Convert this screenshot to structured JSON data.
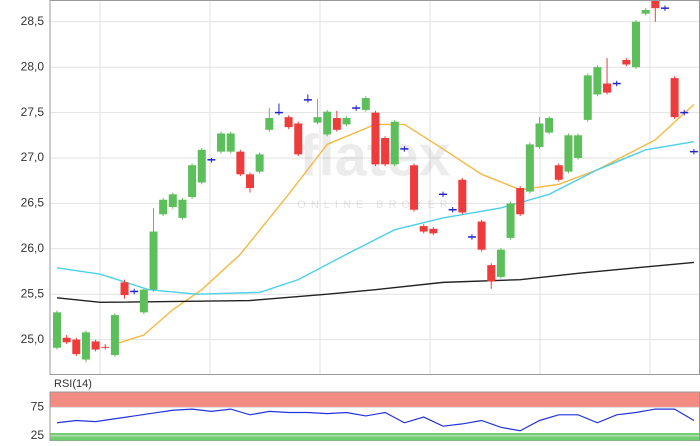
{
  "chart_data": [
    {
      "type": "candlestick",
      "watermark": "flatex",
      "watermark_sub": "ONLINE BROKER",
      "open": [
        24.91,
        25.02,
        25.0,
        24.78,
        24.98,
        24.92,
        24.83,
        25.63,
        25.53,
        25.3,
        25.55,
        26.38,
        26.46,
        26.34,
        26.57,
        26.73,
        26.98,
        27.07,
        27.07,
        27.07,
        26.82,
        26.85,
        27.31,
        27.5,
        27.45,
        27.38,
        27.64,
        27.39,
        27.26,
        27.44,
        27.37,
        27.55,
        27.53,
        27.5,
        27.22,
        26.93,
        27.1,
        26.92,
        26.25,
        26.22,
        26.6,
        26.43,
        26.76,
        26.13,
        26.3,
        25.82,
        25.69,
        26.12,
        26.67,
        26.63,
        27.12,
        27.28,
        26.92,
        26.85,
        27.0,
        27.42,
        27.7,
        27.82,
        27.82,
        28.08,
        28.0,
        28.59,
        28.74,
        28.65,
        27.88,
        27.5,
        27.07
      ],
      "high": [
        25.32,
        25.05,
        25.02,
        25.1,
        25.0,
        24.95,
        25.29,
        25.66,
        25.56,
        25.56,
        26.45,
        26.56,
        26.62,
        26.56,
        26.94,
        27.11,
        27.0,
        27.29,
        27.29,
        27.09,
        26.84,
        27.06,
        27.55,
        27.6,
        27.47,
        27.4,
        27.7,
        27.65,
        27.53,
        27.52,
        27.46,
        27.58,
        27.68,
        27.52,
        27.24,
        27.42,
        27.13,
        26.94,
        26.27,
        26.24,
        26.63,
        26.46,
        26.78,
        26.16,
        26.32,
        25.84,
        26.01,
        26.52,
        26.69,
        27.17,
        27.45,
        27.46,
        26.94,
        27.27,
        27.27,
        27.93,
        28.02,
        28.1,
        27.85,
        28.1,
        28.52,
        28.65,
        28.76,
        28.68,
        27.9,
        27.53,
        27.1
      ],
      "low": [
        24.89,
        24.95,
        24.82,
        24.75,
        24.87,
        24.89,
        24.81,
        25.45,
        25.5,
        25.28,
        25.53,
        26.36,
        26.44,
        26.32,
        26.55,
        26.71,
        26.95,
        27.05,
        27.05,
        26.8,
        26.62,
        26.83,
        27.29,
        27.47,
        27.32,
        27.02,
        27.61,
        27.37,
        27.24,
        27.29,
        27.35,
        27.52,
        27.51,
        26.91,
        26.91,
        26.91,
        27.07,
        26.41,
        26.17,
        26.15,
        26.57,
        26.4,
        26.38,
        26.1,
        25.97,
        25.56,
        25.67,
        26.1,
        26.36,
        26.61,
        27.1,
        27.26,
        26.74,
        26.83,
        26.98,
        27.4,
        27.68,
        27.7,
        27.79,
        28.01,
        27.98,
        28.57,
        28.5,
        28.62,
        27.43,
        27.47,
        27.04
      ],
      "close": [
        25.3,
        24.97,
        24.84,
        25.08,
        24.89,
        24.91,
        25.27,
        25.49,
        25.53,
        25.55,
        26.19,
        26.54,
        26.6,
        26.54,
        26.92,
        27.09,
        26.98,
        27.27,
        27.27,
        26.82,
        26.67,
        27.04,
        27.44,
        27.5,
        27.34,
        27.04,
        27.64,
        27.45,
        27.51,
        27.31,
        27.44,
        27.55,
        27.66,
        26.93,
        26.93,
        27.4,
        27.1,
        26.43,
        26.19,
        26.17,
        26.6,
        26.43,
        26.4,
        26.13,
        25.99,
        25.64,
        25.99,
        26.5,
        26.38,
        27.15,
        27.38,
        27.44,
        26.76,
        27.25,
        27.25,
        27.91,
        28.0,
        27.72,
        27.82,
        28.03,
        28.5,
        28.63,
        28.65,
        28.65,
        27.45,
        27.5,
        27.07
      ],
      "up_color": "#5cbf5c",
      "down_color": "#ee3b3b",
      "doji_color": "#2222cc",
      "lines": [
        {
          "color": "#f5b942",
          "x": [
            6,
            9,
            12,
            15,
            19,
            24,
            28,
            33,
            36,
            40,
            44,
            48,
            52,
            56,
            62,
            66
          ],
          "values": [
            24.95,
            25.05,
            25.33,
            25.55,
            25.94,
            26.6,
            27.15,
            27.37,
            27.37,
            27.1,
            26.82,
            26.65,
            26.71,
            26.87,
            27.2,
            27.59
          ]
        },
        {
          "color": "#4dd0e8",
          "x": [
            0,
            4.5,
            9.5,
            14.5,
            21,
            25,
            30,
            35,
            40,
            46,
            51,
            56,
            61,
            66
          ],
          "values": [
            25.79,
            25.72,
            25.55,
            25.5,
            25.52,
            25.66,
            25.94,
            26.21,
            26.34,
            26.45,
            26.6,
            26.87,
            27.09,
            27.18
          ]
        },
        {
          "color": "#222222",
          "x": [
            0,
            4.5,
            20,
            28,
            33,
            40,
            48,
            54,
            60,
            66
          ],
          "values": [
            25.46,
            25.41,
            25.43,
            25.5,
            25.55,
            25.63,
            25.66,
            25.73,
            25.79,
            25.85
          ]
        }
      ],
      "ylim": [
        24.61,
        28.74
      ],
      "yticks": [
        {
          "value": 25,
          "label": "25,0"
        },
        {
          "value": 25.5,
          "label": "25,5"
        },
        {
          "value": 26,
          "label": "26,0"
        },
        {
          "value": 26.5,
          "label": "26,5"
        },
        {
          "value": 27,
          "label": "27,0"
        },
        {
          "value": 27.5,
          "label": "27,5"
        },
        {
          "value": 28,
          "label": "28,0"
        },
        {
          "value": 28.5,
          "label": "28,5"
        }
      ],
      "grid": true
    },
    {
      "type": "line",
      "title": "RSI(14)",
      "x": [
        0,
        2,
        4,
        6,
        8,
        10,
        12,
        14,
        16,
        18,
        20,
        22,
        24,
        26,
        28,
        30,
        32,
        34,
        36,
        38,
        40,
        42,
        44,
        46,
        48,
        50,
        52,
        54,
        56,
        58,
        60,
        62,
        64,
        66
      ],
      "series": [
        {
          "color": "#2233dd",
          "values": [
            48,
            52,
            50,
            55,
            60,
            65,
            70,
            72,
            68,
            72,
            62,
            68,
            66,
            66,
            64,
            66,
            60,
            66,
            48,
            58,
            42,
            46,
            52,
            40,
            34,
            52,
            62,
            62,
            48,
            62,
            66,
            72,
            72,
            52
          ]
        }
      ],
      "overbought": 75,
      "oversold": 30,
      "band_colors": [
        "#f28b82",
        "#6fcf6f"
      ],
      "ylim": [
        16,
        102
      ],
      "yticks": [
        25,
        75
      ],
      "grid": true
    }
  ]
}
